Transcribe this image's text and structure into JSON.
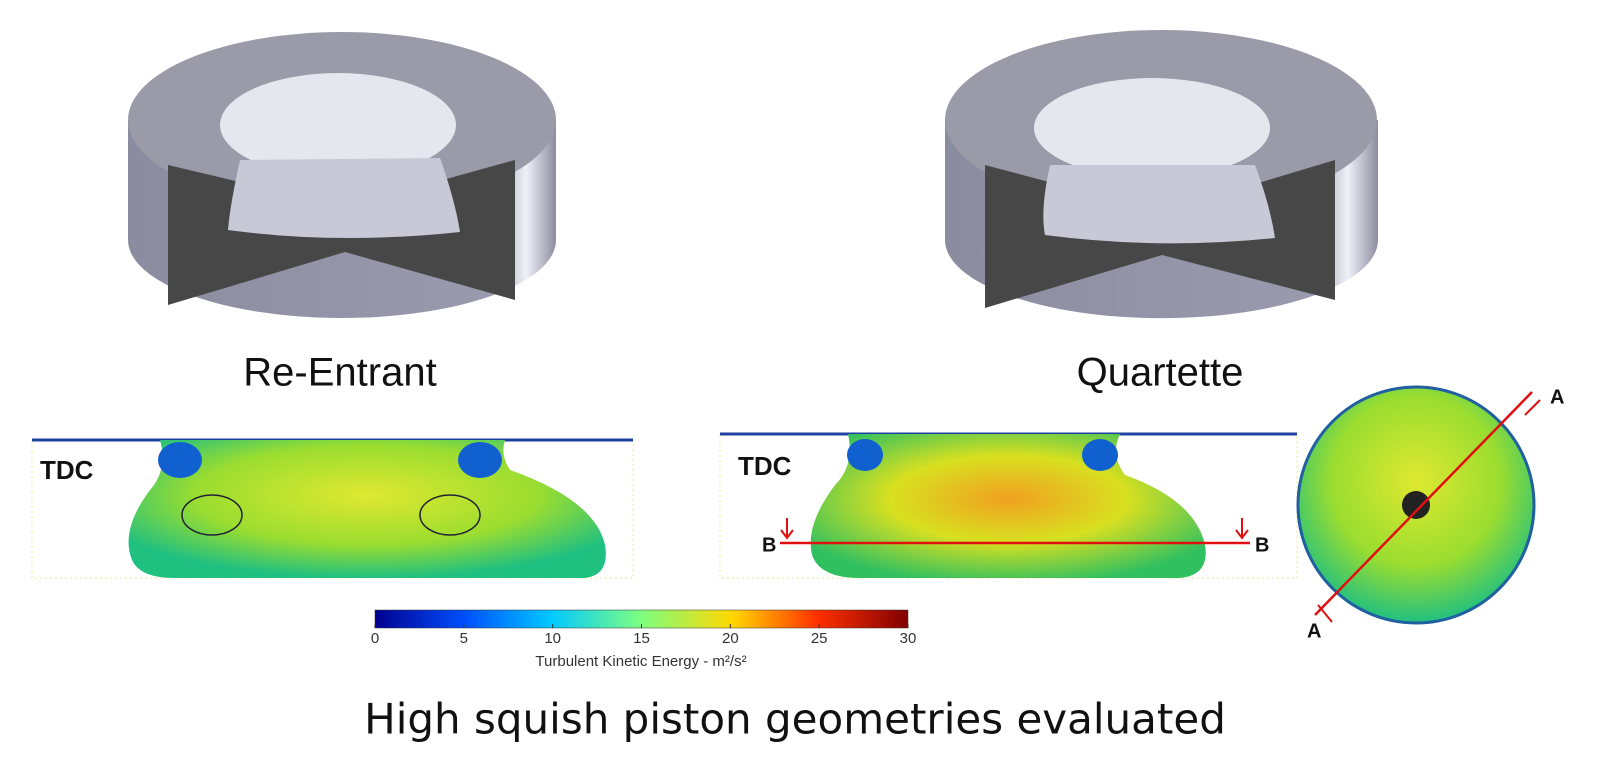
{
  "labels": {
    "left": "Re-Entrant",
    "right": "Quartette"
  },
  "panels": {
    "left_tag": "TDC",
    "right_tag": "TDC",
    "section_b_left": "B",
    "section_b_right": "B",
    "section_a_top": "A",
    "section_a_bottom": "A"
  },
  "colorbar": {
    "lim": [
      0,
      30
    ],
    "ticks": [
      0,
      5,
      10,
      15,
      20,
      25,
      30
    ],
    "label": "Turbulent Kinetic Energy - m²/s²"
  },
  "caption": "High squish piston geometries evaluated"
}
